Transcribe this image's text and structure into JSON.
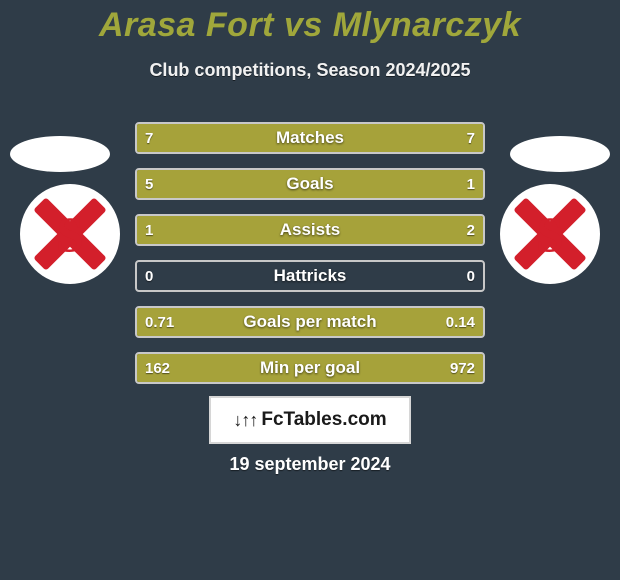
{
  "colors": {
    "background": "#2f3c48",
    "title": "#a0a73b",
    "sub": "#f1f1f1",
    "ellipse": "#ffffff",
    "logo_bg": "#ffffff",
    "logo_shape": "#d31f2b",
    "bar_border": "#c8c8c8",
    "bar_track": "#2f3c48",
    "bar_fill": "#a6a23a",
    "bar_label": "#ffffff",
    "bar_val": "#ffffff",
    "brand_bg": "#ffffff",
    "brand_border": "#d6d6d6",
    "brand_text": "#1a1a1a",
    "date": "#ffffff"
  },
  "title": "Arasa Fort vs Mlynarczyk",
  "subtitle": "Club competitions, Season 2024/2025",
  "date": "19 september 2024",
  "brand": {
    "graphic": "↓↑↑",
    "text": "FcTables.com"
  },
  "track_width": 346,
  "bars": [
    {
      "label": "Matches",
      "left_val": "7",
      "right_val": "7",
      "left_frac": 0.5,
      "right_frac": 0.5
    },
    {
      "label": "Goals",
      "left_val": "5",
      "right_val": "1",
      "left_frac": 0.77,
      "right_frac": 0.23
    },
    {
      "label": "Assists",
      "left_val": "1",
      "right_val": "2",
      "left_frac": 0.3,
      "right_frac": 0.7
    },
    {
      "label": "Hattricks",
      "left_val": "0",
      "right_val": "0",
      "left_frac": 0.0,
      "right_frac": 0.0
    },
    {
      "label": "Goals per match",
      "left_val": "0.71",
      "right_val": "0.14",
      "left_frac": 0.77,
      "right_frac": 0.23
    },
    {
      "label": "Min per goal",
      "left_val": "162",
      "right_val": "972",
      "left_frac": 0.22,
      "right_frac": 0.78
    }
  ]
}
